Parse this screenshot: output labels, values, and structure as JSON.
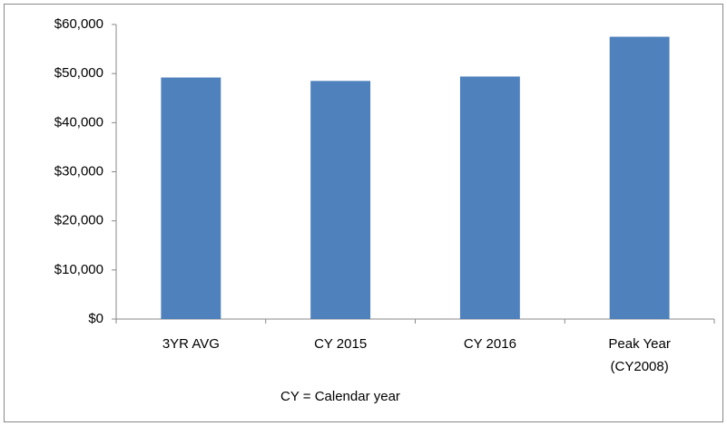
{
  "chart_data": {
    "type": "bar",
    "categories": [
      "3YR AVG",
      "CY 2015",
      "CY 2016",
      "Peak Year (CY2008)"
    ],
    "values": [
      49200,
      48500,
      49400,
      57500
    ],
    "color": "#4f81bd",
    "ylim": [
      0,
      60000
    ],
    "yticks": [
      {
        "value": 0,
        "label": "$0"
      },
      {
        "value": 10000,
        "label": "$10,000"
      },
      {
        "value": 20000,
        "label": "$20,000"
      },
      {
        "value": 30000,
        "label": "$30,000"
      },
      {
        "value": 40000,
        "label": "$40,000"
      },
      {
        "value": 50000,
        "label": "$50,000"
      },
      {
        "value": 60000,
        "label": "$60,000"
      }
    ],
    "grid": false,
    "annotation": "CY = Calendar year"
  }
}
